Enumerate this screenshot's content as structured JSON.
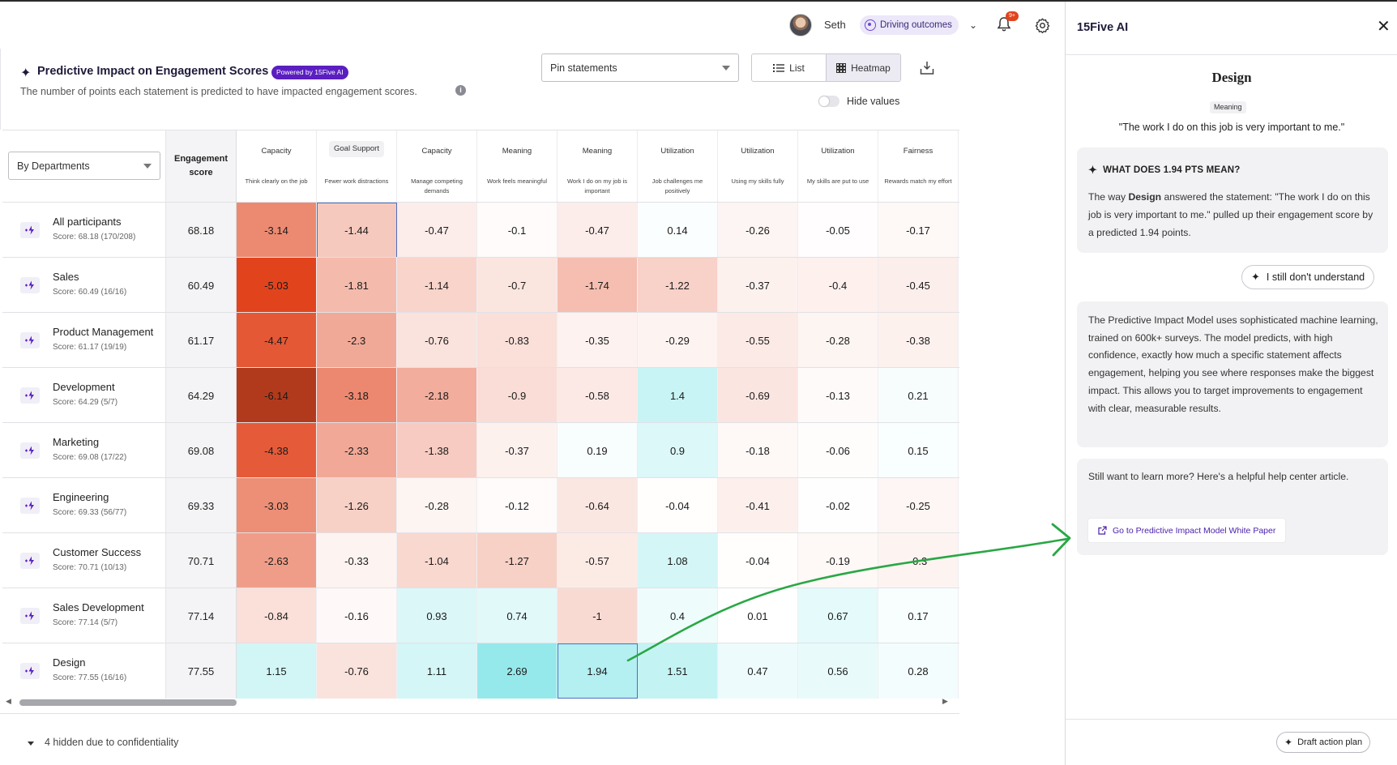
{
  "header": {
    "user_name": "Seth",
    "goal_label": "Driving outcomes",
    "notification_badge": "9+"
  },
  "card": {
    "title": "Predictive Impact on Engagement Scores",
    "badge": "Powered by 15Five AI",
    "subtitle": "The number of points each statement is predicted to have impacted engagement scores.",
    "pin_placeholder": "Pin statements",
    "view_list": "List",
    "view_heatmap": "Heatmap",
    "hide_values": "Hide values"
  },
  "grid": {
    "group_by": "By Departments",
    "engagement_header": "Engagement score",
    "columns": [
      {
        "tag": "Capacity",
        "statement": "Think clearly on the job"
      },
      {
        "tag": "Goal Support",
        "statement": "Fewer work distractions"
      },
      {
        "tag": "Capacity",
        "statement": "Manage competing demands"
      },
      {
        "tag": "Meaning",
        "statement": "Work feels meaningful"
      },
      {
        "tag": "Meaning",
        "statement": "Work I do on my job is important"
      },
      {
        "tag": "Utilization",
        "statement": "Job challenges me positively"
      },
      {
        "tag": "Utilization",
        "statement": "Using my skills fully"
      },
      {
        "tag": "Utilization",
        "statement": "My skills are put to use"
      },
      {
        "tag": "Fairness",
        "statement": "Rewards match my effort"
      }
    ],
    "rows": [
      {
        "name": "All participants",
        "score_text": "Score: 68.18 (170/208)",
        "engagement": "68.18",
        "values": [
          "-3.14",
          "-1.44",
          "-0.47",
          "-0.1",
          "-0.47",
          "0.14",
          "-0.26",
          "-0.05",
          "-0.17"
        ]
      },
      {
        "name": "Sales",
        "score_text": "Score: 60.49 (16/16)",
        "engagement": "60.49",
        "values": [
          "-5.03",
          "-1.81",
          "-1.14",
          "-0.7",
          "-1.74",
          "-1.22",
          "-0.37",
          "-0.4",
          "-0.45"
        ]
      },
      {
        "name": "Product Management",
        "score_text": "Score: 61.17 (19/19)",
        "engagement": "61.17",
        "values": [
          "-4.47",
          "-2.3",
          "-0.76",
          "-0.83",
          "-0.35",
          "-0.29",
          "-0.55",
          "-0.28",
          "-0.38"
        ]
      },
      {
        "name": "Development",
        "score_text": "Score: 64.29 (5/7)",
        "engagement": "64.29",
        "values": [
          "-6.14",
          "-3.18",
          "-2.18",
          "-0.9",
          "-0.58",
          "1.4",
          "-0.69",
          "-0.13",
          "0.21"
        ]
      },
      {
        "name": "Marketing",
        "score_text": "Score: 69.08 (17/22)",
        "engagement": "69.08",
        "values": [
          "-4.38",
          "-2.33",
          "-1.38",
          "-0.37",
          "0.19",
          "0.9",
          "-0.18",
          "-0.06",
          "0.15"
        ]
      },
      {
        "name": "Engineering",
        "score_text": "Score: 69.33 (56/77)",
        "engagement": "69.33",
        "values": [
          "-3.03",
          "-1.26",
          "-0.28",
          "-0.12",
          "-0.64",
          "-0.04",
          "-0.41",
          "-0.02",
          "-0.25"
        ]
      },
      {
        "name": "Customer Success",
        "score_text": "Score: 70.71 (10/13)",
        "engagement": "70.71",
        "values": [
          "-2.63",
          "-0.33",
          "-1.04",
          "-1.27",
          "-0.57",
          "1.08",
          "-0.04",
          "-0.19",
          "-0.3"
        ]
      },
      {
        "name": "Sales Development",
        "score_text": "Score: 77.14 (5/7)",
        "engagement": "77.14",
        "values": [
          "-0.84",
          "-0.16",
          "0.93",
          "0.74",
          "-1",
          "0.4",
          "0.01",
          "0.67",
          "0.17"
        ]
      },
      {
        "name": "Design",
        "score_text": "Score: 77.55 (16/16)",
        "engagement": "77.55",
        "values": [
          "1.15",
          "-0.76",
          "1.11",
          "2.69",
          "1.94",
          "1.51",
          "0.47",
          "0.56",
          "0.28"
        ]
      }
    ],
    "selected_cells": [
      [
        0,
        1
      ],
      [
        8,
        4
      ]
    ],
    "hidden_note": "4 hidden due to confidentiality",
    "colors": {
      "negative": "#e1441d",
      "positive": "#5fe6e6"
    }
  },
  "side_panel": {
    "title": "15Five AI",
    "dept": "Design",
    "tag": "Meaning",
    "quote": "\"The work I do on this job is very important to me.\"",
    "explain_heading": "WHAT DOES 1.94 PTS MEAN?",
    "explain_pre": "The way ",
    "explain_dept": "Design",
    "explain_post": " answered the statement: \"The work I do on this job is very important to me.\" pulled up their engagement score by a predicted 1.94 points.",
    "ask_button": "I still don't understand",
    "model_text": "The Predictive Impact Model uses sophisticated machine learning, trained on 600k+ surveys. The model predicts, with high confidence, exactly how much a specific statement affects engagement, helping you see where responses make the biggest impact. This allows you to target improvements to engagement with clear, measurable results.",
    "learn_more": "Still want to learn more? Here's a helpful help center article.",
    "link_label": "Go to Predictive Impact Model White Paper",
    "draft_button": "Draft action plan"
  }
}
